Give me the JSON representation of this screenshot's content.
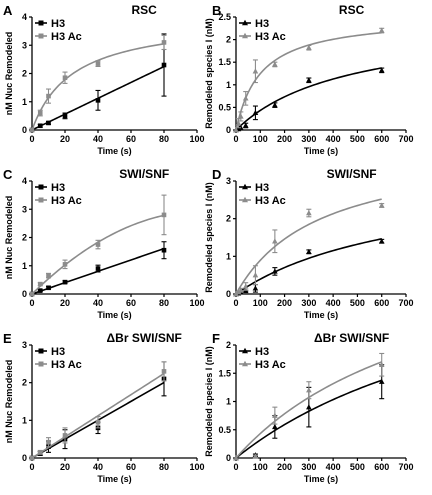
{
  "chart_data": [
    {
      "panel": "A",
      "type": "line",
      "title": "RSC",
      "xlabel": "Time (s)",
      "ylabel": "nM Nuc Remodeled",
      "xlim": [
        0,
        100
      ],
      "ylim": [
        0,
        4
      ],
      "xticks": [
        0,
        20,
        40,
        60,
        80,
        100
      ],
      "yticks": [
        0,
        1,
        2,
        3,
        4
      ],
      "legend": "top-left",
      "grid": false,
      "series": [
        {
          "name": "H3",
          "color": "#000000",
          "marker": "square",
          "x": [
            0,
            5,
            10,
            20,
            40,
            80
          ],
          "y": [
            0,
            0.15,
            0.25,
            0.5,
            1.05,
            2.3
          ],
          "err": [
            0,
            0.05,
            0.05,
            0.1,
            0.35,
            1.1
          ],
          "fit": "linear"
        },
        {
          "name": "H3 Ac",
          "color": "#8c8c8c",
          "marker": "square",
          "x": [
            0,
            5,
            10,
            20,
            40,
            80
          ],
          "y": [
            0,
            0.6,
            1.2,
            1.85,
            2.35,
            3.1
          ],
          "err": [
            0,
            0.1,
            0.25,
            0.2,
            0.1,
            0.25
          ],
          "fit": "hyperbolic"
        }
      ]
    },
    {
      "panel": "B",
      "type": "line",
      "title": "RSC",
      "xlabel": "Time (s)",
      "ylabel": "Remodeled species I (nM)",
      "xlim": [
        0,
        700
      ],
      "ylim": [
        0,
        2.5
      ],
      "xticks": [
        0,
        100,
        200,
        300,
        400,
        500,
        600,
        700
      ],
      "yticks": [
        0,
        0.5,
        1.0,
        1.5,
        2.0,
        2.5
      ],
      "legend": "top-left",
      "grid": false,
      "series": [
        {
          "name": "H3",
          "color": "#000000",
          "marker": "triangle",
          "x": [
            0,
            10,
            20,
            40,
            80,
            160,
            300,
            600
          ],
          "y": [
            0,
            0.02,
            0.05,
            0.1,
            0.38,
            0.55,
            1.1,
            1.32
          ],
          "err": [
            0,
            0,
            0,
            0.05,
            0.15,
            0.05,
            0.05,
            0.05
          ],
          "fit": "saturating"
        },
        {
          "name": "H3 Ac",
          "color": "#8c8c8c",
          "marker": "triangle",
          "x": [
            0,
            10,
            20,
            40,
            80,
            160,
            300,
            600
          ],
          "y": [
            0,
            0.15,
            0.3,
            0.7,
            1.3,
            1.45,
            1.82,
            2.2
          ],
          "err": [
            0,
            0.1,
            0.1,
            0.15,
            0.25,
            0.05,
            0.05,
            0.05
          ],
          "fit": "saturating"
        }
      ]
    },
    {
      "panel": "C",
      "type": "line",
      "title": "SWI/SNF",
      "xlabel": "Time (s)",
      "ylabel": "nM Nuc Remodeled",
      "xlim": [
        0,
        100
      ],
      "ylim": [
        0,
        4
      ],
      "xticks": [
        0,
        20,
        40,
        60,
        80,
        100
      ],
      "yticks": [
        0,
        1,
        2,
        3,
        4
      ],
      "legend": "top-left",
      "grid": false,
      "series": [
        {
          "name": "H3",
          "color": "#000000",
          "marker": "square",
          "x": [
            0,
            5,
            10,
            20,
            40,
            80
          ],
          "y": [
            0,
            0.12,
            0.22,
            0.42,
            0.9,
            1.55
          ],
          "err": [
            0,
            0.03,
            0.05,
            0.05,
            0.12,
            0.3
          ],
          "fit": "linear"
        },
        {
          "name": "H3 Ac",
          "color": "#8c8c8c",
          "marker": "square",
          "x": [
            0,
            5,
            10,
            20,
            40,
            80
          ],
          "y": [
            0,
            0.35,
            0.65,
            1.05,
            1.75,
            2.8
          ],
          "err": [
            0,
            0.05,
            0.08,
            0.15,
            0.15,
            0.7
          ],
          "fit": "slightly-curved"
        }
      ]
    },
    {
      "panel": "D",
      "type": "line",
      "title": "SWI/SNF",
      "xlabel": "Time (s)",
      "ylabel": "Remodeled species I (nM)",
      "xlim": [
        0,
        700
      ],
      "ylim": [
        0,
        3
      ],
      "xticks": [
        0,
        100,
        200,
        300,
        400,
        500,
        600,
        700
      ],
      "yticks": [
        0,
        1,
        2,
        3
      ],
      "legend": "top-left",
      "grid": false,
      "series": [
        {
          "name": "H3",
          "color": "#000000",
          "marker": "triangle",
          "x": [
            0,
            10,
            20,
            40,
            80,
            160,
            300,
            600
          ],
          "y": [
            0,
            0.02,
            0.05,
            0.08,
            0.15,
            0.6,
            1.12,
            1.4
          ],
          "err": [
            0,
            0,
            0,
            0.02,
            0.1,
            0.1,
            0.05,
            0.05
          ],
          "fit": "saturating"
        },
        {
          "name": "H3 Ac",
          "color": "#8c8c8c",
          "marker": "triangle",
          "x": [
            0,
            10,
            20,
            40,
            80,
            160,
            300,
            600
          ],
          "y": [
            0,
            0.05,
            0.1,
            0.2,
            0.5,
            1.4,
            2.15,
            2.35
          ],
          "err": [
            0,
            0.02,
            0.05,
            0.1,
            0.25,
            0.3,
            0.1,
            0.05
          ],
          "fit": "saturating"
        }
      ]
    },
    {
      "panel": "E",
      "type": "line",
      "title": "ΔBr SWI/SNF",
      "xlabel": "Time (s)",
      "ylabel": "nM Nuc Remodeled",
      "xlim": [
        0,
        100
      ],
      "ylim": [
        0,
        3
      ],
      "xticks": [
        0,
        20,
        40,
        60,
        80,
        100
      ],
      "yticks": [
        0,
        1,
        2,
        3
      ],
      "legend": "top-left",
      "grid": false,
      "series": [
        {
          "name": "H3",
          "color": "#000000",
          "marker": "square",
          "x": [
            0,
            5,
            10,
            20,
            40,
            80
          ],
          "y": [
            0,
            0.12,
            0.3,
            0.5,
            0.8,
            2.1
          ],
          "err": [
            0,
            0.05,
            0.15,
            0.25,
            0.15,
            0.45
          ],
          "fit": "linear"
        },
        {
          "name": "H3 Ac",
          "color": "#8c8c8c",
          "marker": "square",
          "x": [
            0,
            5,
            10,
            20,
            40,
            80
          ],
          "y": [
            0,
            0.15,
            0.42,
            0.6,
            0.95,
            2.3
          ],
          "err": [
            0,
            0.05,
            0.12,
            0.2,
            0.15,
            0.25
          ],
          "fit": "linear"
        }
      ]
    },
    {
      "panel": "F",
      "type": "line",
      "title": "ΔBr SWI/SNF",
      "xlabel": "Time (s)",
      "ylabel": "Remodeled species I (nM)",
      "xlim": [
        0,
        700
      ],
      "ylim": [
        0,
        2
      ],
      "xticks": [
        0,
        100,
        200,
        300,
        400,
        500,
        600,
        700
      ],
      "yticks": [
        0,
        0.5,
        1.0,
        1.5,
        2.0
      ],
      "legend": "top-left",
      "grid": false,
      "series": [
        {
          "name": "H3",
          "color": "#000000",
          "marker": "triangle",
          "x": [
            0,
            80,
            160,
            300,
            600
          ],
          "y": [
            0,
            0.05,
            0.55,
            0.9,
            1.35
          ],
          "err": [
            0,
            0.02,
            0.2,
            0.35,
            0.3
          ],
          "fit": "saturating"
        },
        {
          "name": "H3 Ac",
          "color": "#8c8c8c",
          "marker": "triangle",
          "x": [
            0,
            80,
            160,
            300,
            600
          ],
          "y": [
            0,
            0.03,
            0.75,
            1.2,
            1.65
          ],
          "err": [
            0,
            0.02,
            0.15,
            0.15,
            0.2
          ],
          "fit": "saturating"
        }
      ]
    }
  ]
}
